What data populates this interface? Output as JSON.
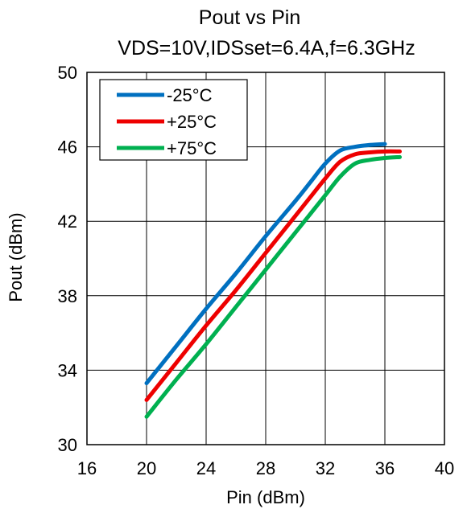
{
  "chart_data": {
    "type": "line",
    "title": "Pout vs Pin",
    "subtitle": "VDS=10V,IDSset=6.4A,f=6.3GHz",
    "xlabel": "Pin (dBm)",
    "ylabel": "Pout (dBm)",
    "xlim": [
      16,
      40
    ],
    "ylim": [
      30,
      50
    ],
    "xticks": [
      16,
      20,
      24,
      28,
      32,
      36,
      40
    ],
    "yticks": [
      30,
      34,
      38,
      42,
      46,
      50
    ],
    "grid": true,
    "legend_position": "top-left",
    "series": [
      {
        "name": "-25°C",
        "color": "#0070C0",
        "x": [
          20,
          22,
          24,
          26,
          28,
          30,
          31,
          32,
          33,
          34,
          35,
          36
        ],
        "y": [
          33.3,
          35.3,
          37.3,
          39.2,
          41.2,
          43.1,
          44.1,
          45.1,
          45.8,
          46.0,
          46.1,
          46.15
        ]
      },
      {
        "name": "+25°C",
        "color": "#EE0000",
        "x": [
          20,
          22,
          24,
          26,
          28,
          30,
          31,
          32,
          33,
          34,
          35,
          36,
          37
        ],
        "y": [
          32.4,
          34.4,
          36.4,
          38.3,
          40.3,
          42.3,
          43.3,
          44.3,
          45.2,
          45.6,
          45.7,
          45.75,
          45.75
        ]
      },
      {
        "name": "+75°C",
        "color": "#00B050",
        "x": [
          20,
          22,
          24,
          26,
          28,
          30,
          31,
          32,
          33,
          34,
          35,
          36,
          37
        ],
        "y": [
          31.5,
          33.5,
          35.4,
          37.4,
          39.4,
          41.4,
          42.4,
          43.4,
          44.4,
          45.1,
          45.3,
          45.4,
          45.45
        ]
      }
    ]
  }
}
